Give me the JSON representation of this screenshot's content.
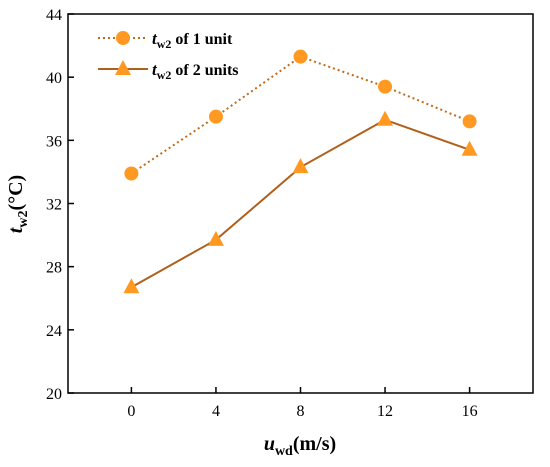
{
  "chart_data": {
    "type": "line",
    "x": [
      0,
      4,
      8,
      12,
      16
    ],
    "xticks": [
      "0",
      "4",
      "8",
      "12",
      "16"
    ],
    "yticks": [
      "20",
      "24",
      "28",
      "32",
      "36",
      "40",
      "44"
    ],
    "xlim": [
      -3,
      19
    ],
    "ylim": [
      20,
      44
    ],
    "xlabel": {
      "main": "u",
      "sub": "wd",
      "suffix": "(m/s)"
    },
    "ylabel": {
      "main": "t",
      "sub": "w2",
      "suffix": "(°C)"
    },
    "grid": false,
    "legend_position": "top-left",
    "series": [
      {
        "name": "t_w2 of 1 unit",
        "legend": {
          "main": "t",
          "sub": "w2",
          "suffix": " of 1 unit"
        },
        "values": [
          33.9,
          37.5,
          41.3,
          39.4,
          37.2
        ],
        "marker": "circle",
        "line_style": "dotted",
        "marker_color": "#FF9922",
        "line_color": "#C06A1A"
      },
      {
        "name": "t_w2 of 2 units",
        "legend": {
          "main": "t",
          "sub": "w2",
          "suffix": " of 2 units"
        },
        "values": [
          26.7,
          29.7,
          34.3,
          37.3,
          35.4
        ],
        "marker": "triangle",
        "line_style": "solid",
        "marker_color": "#FF9922",
        "line_color": "#B0601A"
      }
    ]
  }
}
